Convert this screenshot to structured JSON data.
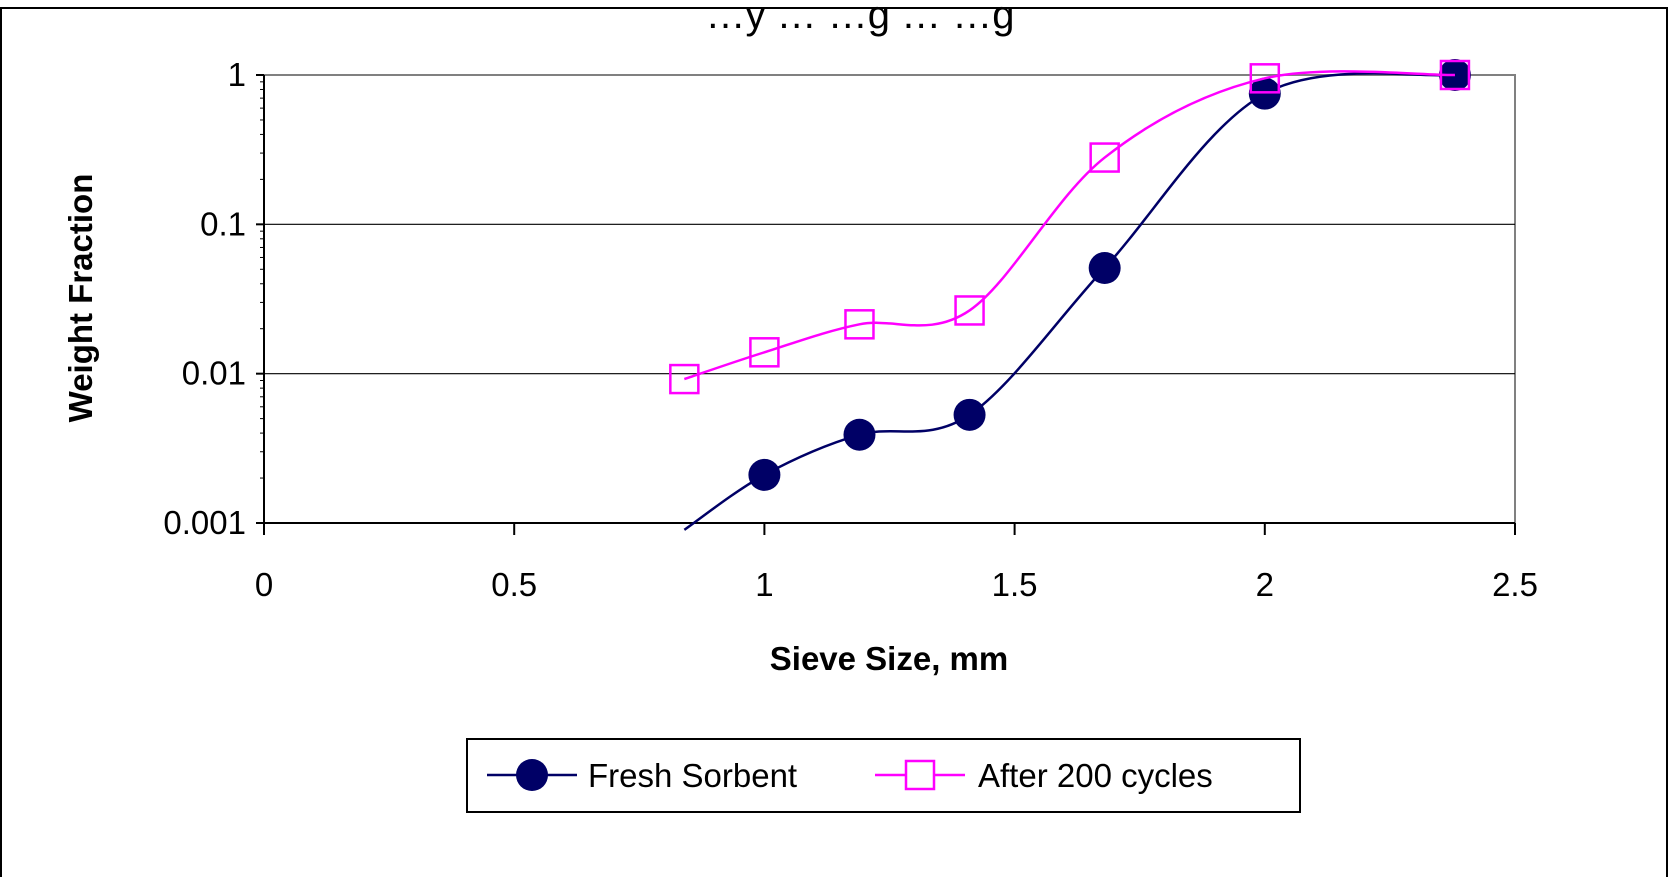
{
  "chart_data": {
    "type": "line",
    "title": "…y … …g … …g",
    "xlabel": "Sieve Size, mm",
    "ylabel": "Weight Fraction",
    "x_ticks": [
      "0",
      "0.5",
      "1",
      "1.5",
      "2",
      "2.5"
    ],
    "y_ticks": [
      "0.001",
      "0.01",
      "0.1",
      "1"
    ],
    "xlim": [
      0,
      2.5
    ],
    "ylim": [
      0.001,
      1
    ],
    "y_scale": "log",
    "grid": "horizontal major lines",
    "legend_position": "bottom",
    "series": [
      {
        "name": "Fresh Sorbent",
        "color": "#000066",
        "marker": "filled-circle",
        "points": [
          {
            "x": 0.84,
            "y": 0.0009
          },
          {
            "x": 1.0,
            "y": 0.0021
          },
          {
            "x": 1.19,
            "y": 0.0039
          },
          {
            "x": 1.41,
            "y": 0.0053
          },
          {
            "x": 1.68,
            "y": 0.051
          },
          {
            "x": 2.0,
            "y": 0.75
          },
          {
            "x": 2.38,
            "y": 1.0
          }
        ]
      },
      {
        "name": "After 200 cycles",
        "color": "#FF00FF",
        "marker": "open-square",
        "points": [
          {
            "x": 0.84,
            "y": 0.0092
          },
          {
            "x": 1.0,
            "y": 0.0139
          },
          {
            "x": 1.19,
            "y": 0.0214
          },
          {
            "x": 1.41,
            "y": 0.0265
          },
          {
            "x": 1.68,
            "y": 0.28
          },
          {
            "x": 2.0,
            "y": 0.95
          },
          {
            "x": 2.38,
            "y": 1.0
          }
        ]
      }
    ]
  }
}
